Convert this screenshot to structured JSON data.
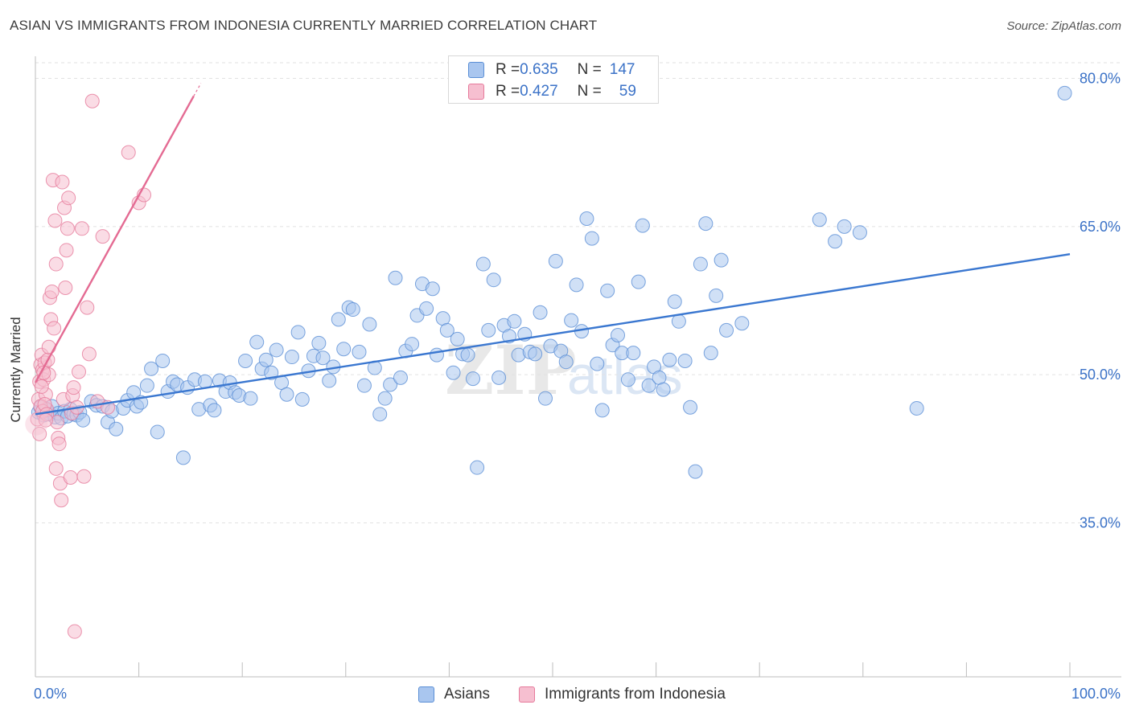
{
  "title": "ASIAN VS IMMIGRANTS FROM INDONESIA CURRENTLY MARRIED CORRELATION CHART",
  "source": "Source: ZipAtlas.com",
  "watermark": {
    "zip": "ZIP",
    "atlas": "atlas"
  },
  "colors": {
    "blue_fill": "#a9c6ef",
    "blue_stroke": "#5b8fd6",
    "blue_line": "#3a77d0",
    "pink_fill": "#f6bfd0",
    "pink_stroke": "#e67a9b",
    "pink_line": "#e46b93",
    "tick_text": "#3b72c7",
    "grid": "#e2e2e2"
  },
  "legend": {
    "rows": [
      {
        "r_label": "R = ",
        "r_value": "0.635",
        "n_label": "N = ",
        "n_value": "147",
        "color": "blue"
      },
      {
        "r_label": "R = ",
        "r_value": "0.427",
        "n_label": "N = ",
        "n_value": "59",
        "color": "pink"
      }
    ]
  },
  "bottom_legend": [
    {
      "label": "Asians",
      "color": "blue"
    },
    {
      "label": "Immigrants from Indonesia",
      "color": "pink"
    }
  ],
  "chart_data": {
    "type": "scatter",
    "xlabel": "",
    "ylabel": "Currently Married",
    "xlim": [
      0,
      100
    ],
    "ylim": [
      20,
      83
    ],
    "x_tick_labels": [
      {
        "value": 0,
        "label": "0.0%"
      },
      {
        "value": 100,
        "label": "100.0%"
      }
    ],
    "x_minor_ticks": [
      0,
      10,
      20,
      30,
      40,
      50,
      60,
      70,
      80,
      90,
      100
    ],
    "y_ticks": [
      {
        "value": 80,
        "label": "80.0%"
      },
      {
        "value": 65,
        "label": "65.0%"
      },
      {
        "value": 50,
        "label": "50.0%"
      },
      {
        "value": 35,
        "label": "35.0%"
      }
    ],
    "grid": true,
    "series": [
      {
        "name": "Asians",
        "color": "blue",
        "trend": {
          "x": [
            0,
            100
          ],
          "y": [
            46.0,
            62.2
          ]
        },
        "points": [
          [
            0.3,
            46.2
          ],
          [
            0.5,
            46.7
          ],
          [
            0.8,
            45.9
          ],
          [
            1.1,
            46.4
          ],
          [
            1.4,
            46.0
          ],
          [
            1.6,
            46.8
          ],
          [
            1.9,
            45.7
          ],
          [
            2.2,
            46.1
          ],
          [
            2.5,
            45.6
          ],
          [
            2.8,
            46.3
          ],
          [
            3.1,
            45.8
          ],
          [
            3.4,
            46.5
          ],
          [
            3.7,
            46.0
          ],
          [
            4.0,
            45.9
          ],
          [
            4.3,
            46.2
          ],
          [
            4.6,
            45.4
          ],
          [
            5.4,
            47.3
          ],
          [
            5.9,
            46.9
          ],
          [
            6.5,
            46.8
          ],
          [
            7.0,
            45.2
          ],
          [
            7.4,
            46.3
          ],
          [
            7.8,
            44.5
          ],
          [
            8.5,
            46.6
          ],
          [
            8.9,
            47.4
          ],
          [
            9.5,
            48.2
          ],
          [
            9.8,
            46.8
          ],
          [
            10.2,
            47.2
          ],
          [
            10.8,
            48.9
          ],
          [
            11.2,
            50.6
          ],
          [
            11.8,
            44.2
          ],
          [
            12.3,
            51.4
          ],
          [
            12.8,
            48.3
          ],
          [
            13.3,
            49.3
          ],
          [
            13.7,
            49.0
          ],
          [
            14.3,
            41.6
          ],
          [
            14.7,
            48.7
          ],
          [
            15.4,
            49.5
          ],
          [
            15.8,
            46.5
          ],
          [
            16.4,
            49.3
          ],
          [
            16.9,
            46.9
          ],
          [
            17.3,
            46.4
          ],
          [
            17.8,
            49.4
          ],
          [
            18.4,
            48.3
          ],
          [
            18.8,
            49.2
          ],
          [
            19.3,
            48.2
          ],
          [
            19.7,
            47.9
          ],
          [
            20.3,
            51.4
          ],
          [
            20.8,
            47.6
          ],
          [
            21.4,
            53.3
          ],
          [
            21.9,
            50.6
          ],
          [
            22.3,
            51.5
          ],
          [
            22.8,
            50.2
          ],
          [
            23.3,
            52.5
          ],
          [
            23.8,
            49.2
          ],
          [
            24.3,
            48.0
          ],
          [
            24.8,
            51.8
          ],
          [
            25.4,
            54.3
          ],
          [
            25.8,
            47.5
          ],
          [
            26.4,
            50.4
          ],
          [
            26.9,
            51.9
          ],
          [
            27.4,
            53.2
          ],
          [
            27.8,
            51.7
          ],
          [
            28.4,
            49.4
          ],
          [
            28.8,
            50.8
          ],
          [
            29.3,
            55.6
          ],
          [
            29.8,
            52.6
          ],
          [
            30.3,
            56.8
          ],
          [
            30.7,
            56.6
          ],
          [
            31.3,
            52.3
          ],
          [
            31.8,
            48.9
          ],
          [
            32.3,
            55.1
          ],
          [
            32.8,
            50.7
          ],
          [
            33.3,
            46.0
          ],
          [
            33.8,
            47.6
          ],
          [
            34.3,
            49.0
          ],
          [
            34.8,
            59.8
          ],
          [
            35.3,
            49.7
          ],
          [
            35.8,
            52.4
          ],
          [
            36.4,
            53.1
          ],
          [
            36.9,
            56.0
          ],
          [
            37.4,
            59.2
          ],
          [
            37.8,
            56.7
          ],
          [
            38.4,
            58.7
          ],
          [
            38.8,
            52.0
          ],
          [
            39.4,
            55.7
          ],
          [
            39.8,
            54.5
          ],
          [
            40.4,
            50.2
          ],
          [
            40.8,
            53.6
          ],
          [
            41.3,
            52.1
          ],
          [
            41.8,
            52.0
          ],
          [
            42.3,
            49.6
          ],
          [
            42.7,
            40.6
          ],
          [
            43.3,
            61.2
          ],
          [
            43.8,
            54.5
          ],
          [
            44.3,
            59.6
          ],
          [
            44.8,
            49.7
          ],
          [
            45.3,
            55.0
          ],
          [
            45.8,
            53.9
          ],
          [
            46.3,
            55.4
          ],
          [
            46.7,
            52.0
          ],
          [
            47.3,
            54.1
          ],
          [
            47.8,
            52.3
          ],
          [
            48.3,
            52.1
          ],
          [
            48.8,
            56.3
          ],
          [
            49.3,
            47.6
          ],
          [
            49.8,
            52.9
          ],
          [
            50.3,
            61.5
          ],
          [
            50.8,
            52.4
          ],
          [
            51.3,
            51.3
          ],
          [
            51.8,
            55.5
          ],
          [
            52.3,
            59.1
          ],
          [
            52.8,
            54.4
          ],
          [
            53.3,
            65.8
          ],
          [
            53.8,
            63.8
          ],
          [
            54.3,
            51.1
          ],
          [
            54.8,
            46.4
          ],
          [
            55.3,
            58.5
          ],
          [
            55.8,
            53.0
          ],
          [
            56.3,
            54.0
          ],
          [
            56.7,
            52.2
          ],
          [
            57.3,
            49.5
          ],
          [
            57.8,
            52.2
          ],
          [
            58.3,
            59.4
          ],
          [
            58.7,
            65.1
          ],
          [
            59.3,
            48.9
          ],
          [
            59.8,
            50.8
          ],
          [
            60.3,
            49.7
          ],
          [
            60.7,
            48.5
          ],
          [
            61.3,
            51.5
          ],
          [
            61.8,
            57.4
          ],
          [
            62.2,
            55.4
          ],
          [
            62.8,
            51.4
          ],
          [
            63.3,
            46.7
          ],
          [
            63.8,
            40.2
          ],
          [
            64.3,
            61.2
          ],
          [
            64.8,
            65.3
          ],
          [
            65.3,
            52.2
          ],
          [
            65.8,
            58.0
          ],
          [
            66.3,
            61.6
          ],
          [
            66.8,
            54.5
          ],
          [
            68.3,
            55.2
          ],
          [
            75.8,
            65.7
          ],
          [
            77.3,
            63.5
          ],
          [
            78.2,
            65.0
          ],
          [
            79.7,
            64.4
          ],
          [
            85.2,
            46.6
          ],
          [
            99.5,
            78.5
          ]
        ]
      },
      {
        "name": "Immigrants from Indonesia",
        "color": "pink",
        "trend": {
          "x": [
            0,
            15.3
          ],
          "y": [
            49.2,
            78.2
          ],
          "dash_to": [
            16.0,
            79.5
          ]
        },
        "points": [
          [
            0.2,
            45.5
          ],
          [
            0.3,
            47.5
          ],
          [
            0.4,
            49.3
          ],
          [
            0.5,
            51.0
          ],
          [
            0.6,
            52.0
          ],
          [
            0.7,
            50.5
          ],
          [
            0.8,
            49.5
          ],
          [
            0.9,
            51.2
          ],
          [
            1.0,
            48.0
          ],
          [
            1.1,
            46.5
          ],
          [
            1.2,
            51.5
          ],
          [
            1.3,
            50.0
          ],
          [
            1.4,
            57.8
          ],
          [
            1.5,
            55.6
          ],
          [
            1.6,
            58.4
          ],
          [
            1.7,
            69.7
          ],
          [
            1.8,
            54.7
          ],
          [
            1.9,
            65.6
          ],
          [
            2.0,
            61.2
          ],
          [
            2.1,
            45.2
          ],
          [
            2.2,
            43.6
          ],
          [
            2.3,
            43.0
          ],
          [
            2.4,
            39.0
          ],
          [
            2.5,
            37.3
          ],
          [
            2.6,
            69.5
          ],
          [
            2.7,
            47.5
          ],
          [
            2.8,
            66.9
          ],
          [
            2.9,
            58.8
          ],
          [
            3.0,
            62.6
          ],
          [
            3.1,
            64.8
          ],
          [
            3.2,
            67.9
          ],
          [
            3.4,
            39.6
          ],
          [
            3.5,
            46.1
          ],
          [
            3.6,
            47.9
          ],
          [
            3.7,
            48.7
          ],
          [
            3.8,
            24.0
          ],
          [
            4.0,
            46.7
          ],
          [
            4.2,
            50.3
          ],
          [
            4.5,
            64.8
          ],
          [
            4.7,
            39.7
          ],
          [
            5.0,
            56.8
          ],
          [
            5.2,
            52.1
          ],
          [
            5.5,
            77.7
          ],
          [
            6.0,
            47.3
          ],
          [
            6.5,
            64.0
          ],
          [
            7.0,
            46.7
          ],
          [
            9.0,
            72.5
          ],
          [
            10.0,
            67.4
          ],
          [
            10.5,
            68.2
          ],
          [
            0.5,
            46.8
          ],
          [
            0.7,
            46.3
          ],
          [
            0.9,
            47.0
          ],
          [
            1.1,
            46.0
          ],
          [
            0.4,
            44.0
          ],
          [
            0.6,
            48.8
          ],
          [
            0.8,
            50.2
          ],
          [
            1.0,
            45.4
          ],
          [
            1.3,
            52.8
          ],
          [
            2.0,
            40.5
          ]
        ]
      }
    ]
  }
}
